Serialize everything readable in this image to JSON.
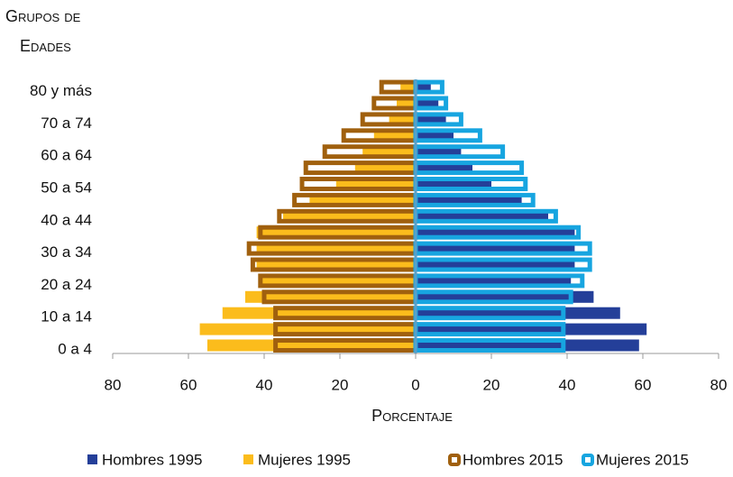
{
  "chart_data": {
    "type": "pyramid",
    "y_label": [
      "Grupos de",
      "Edades"
    ],
    "x_label": "Porcentaje",
    "categories": [
      "0 a 4",
      null,
      "10 a 14",
      null,
      "20 a 24",
      null,
      "30 a 34",
      null,
      "40 a 44",
      null,
      "50 a 54",
      null,
      "60 a 64",
      null,
      "70 a 74",
      null,
      "80 y más"
    ],
    "series": [
      {
        "name": "Hombres 1995",
        "color": "#243f99",
        "style": "fill",
        "values": [
          59,
          61,
          54,
          47,
          41,
          42,
          42,
          42,
          35,
          28,
          20,
          15,
          12,
          10,
          8,
          6,
          4
        ]
      },
      {
        "name": "Mujeres 1995",
        "color": "#fbbc1c",
        "style": "fill",
        "values": [
          -55,
          -57,
          -51,
          -45,
          -41,
          -42,
          -42,
          -42,
          -35,
          -28,
          -21,
          -16,
          -14,
          -11,
          -7,
          -5,
          -4
        ]
      },
      {
        "name": "Hombres 2015",
        "color": "#a0600e",
        "style": "outline",
        "values": [
          -37,
          -37,
          -37,
          -40,
          -41,
          -43,
          -44,
          -41,
          -36,
          -32,
          -30,
          -29,
          -24,
          -19,
          -14,
          -11,
          -9
        ]
      },
      {
        "name": "Mujeres 2015",
        "color": "#17a5e0",
        "style": "outline",
        "values": [
          39,
          39,
          39,
          41,
          44,
          46,
          46,
          43,
          37,
          31,
          29,
          28,
          23,
          17,
          12,
          8,
          7
        ]
      }
    ],
    "xlim": [
      -80,
      80
    ],
    "xticks": [
      {
        "value": -80,
        "label": "80"
      },
      {
        "value": -60,
        "label": "60"
      },
      {
        "value": -40,
        "label": "40"
      },
      {
        "value": -20,
        "label": "20"
      },
      0,
      20,
      40,
      60,
      80
    ]
  }
}
